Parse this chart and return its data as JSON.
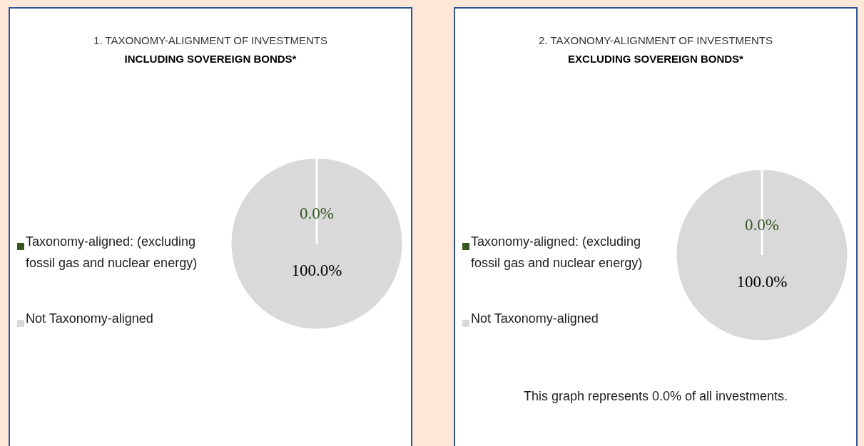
{
  "chart_data": [
    {
      "type": "pie",
      "title": "1. TAXONOMY-ALIGNMENT OF INVESTMENTS",
      "subtitle": "INCLUDING SOVEREIGN BONDS*",
      "categories": [
        "Taxonomy-aligned: (excluding fossil gas and nuclear energy)",
        "Not Taxonomy-aligned"
      ],
      "values": [
        0,
        100
      ],
      "colors": [
        "#375623",
        "#d9d9d9"
      ],
      "value_labels": [
        "0.0%",
        "100.0%"
      ],
      "legend": "left"
    },
    {
      "type": "pie",
      "title": "2. TAXONOMY-ALIGNMENT OF INVESTMENTS",
      "subtitle": "EXCLUDING SOVEREIGN BONDS*",
      "categories": [
        "Taxonomy-aligned: (excluding fossil gas and nuclear energy)",
        "Not Taxonomy-aligned"
      ],
      "values": [
        0,
        100
      ],
      "colors": [
        "#375623",
        "#d9d9d9"
      ],
      "value_labels": [
        "0.0%",
        "100.0%"
      ],
      "legend": "left",
      "annotations": [
        "This graph represents 0.0% of all investments."
      ]
    }
  ]
}
